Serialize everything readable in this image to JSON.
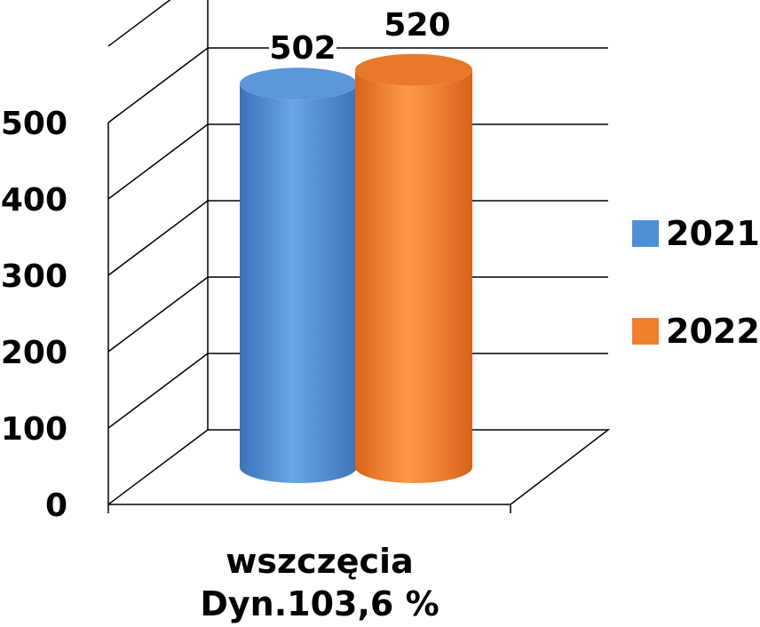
{
  "chart_data": {
    "type": "bar",
    "style": "3d-cylinder",
    "categories": [
      "wszczęcia"
    ],
    "category_caption": "Dyn.103,6 %",
    "series": [
      {
        "name": "2021",
        "values": [
          502
        ],
        "color": "#4f8fd6"
      },
      {
        "name": "2022",
        "values": [
          520
        ],
        "color": "#f07f2c"
      }
    ],
    "yticks": [
      "0",
      "100",
      "200",
      "300",
      "400",
      "500"
    ],
    "ylim": [
      0,
      600
    ],
    "grid": true,
    "legend_position": "right"
  }
}
